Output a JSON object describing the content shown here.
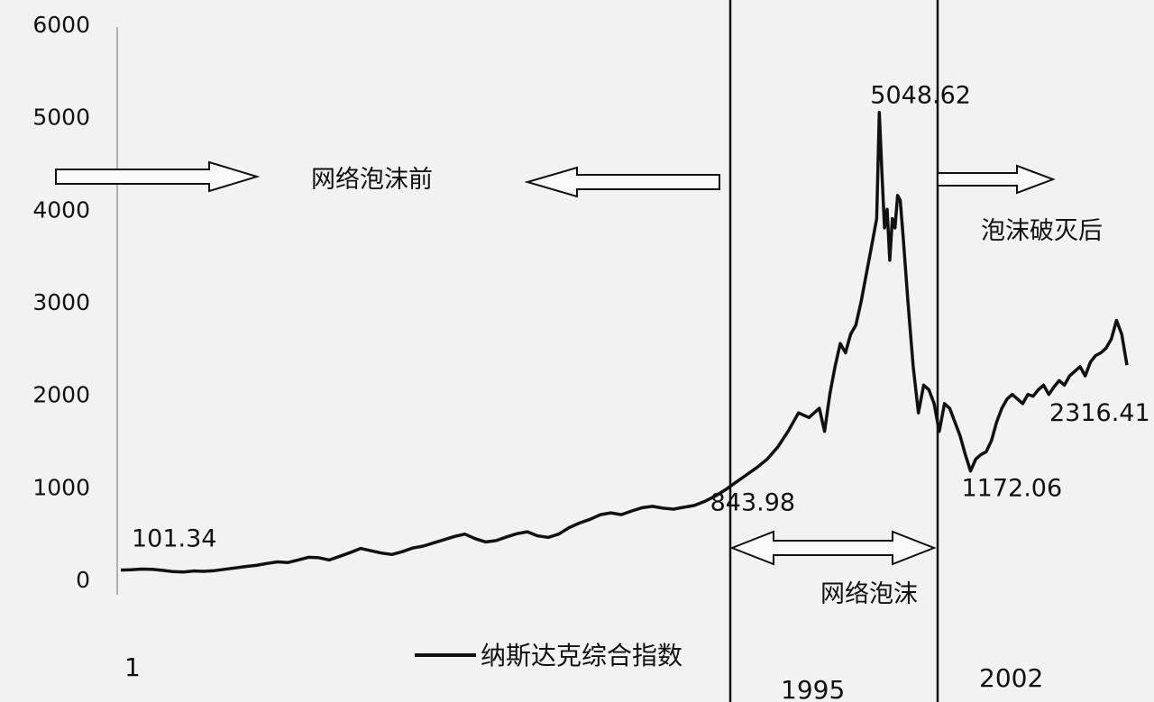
{
  "chart_data": {
    "type": "line",
    "title": "",
    "xlabel": "",
    "ylabel": "",
    "ylim": [
      0,
      6000
    ],
    "yticks": [
      0,
      1000,
      2000,
      3000,
      4000,
      5000,
      6000
    ],
    "grid": false,
    "legend": {
      "position": "bottom",
      "entries": [
        "纳斯达克综合指数"
      ]
    },
    "x_tick_labels": [
      "1",
      "1995",
      "2002"
    ],
    "series": [
      {
        "name": "纳斯达克综合指数",
        "color": "#111111",
        "points": [
          [
            0,
            101.34
          ],
          [
            2,
            105
          ],
          [
            4,
            112
          ],
          [
            6,
            110
          ],
          [
            8,
            98
          ],
          [
            10,
            85
          ],
          [
            12,
            80
          ],
          [
            14,
            92
          ],
          [
            16,
            88
          ],
          [
            18,
            95
          ],
          [
            20,
            110
          ],
          [
            22,
            125
          ],
          [
            24,
            140
          ],
          [
            26,
            152
          ],
          [
            28,
            172
          ],
          [
            30,
            190
          ],
          [
            32,
            182
          ],
          [
            34,
            210
          ],
          [
            36,
            240
          ],
          [
            38,
            235
          ],
          [
            40,
            210
          ],
          [
            42,
            250
          ],
          [
            44,
            290
          ],
          [
            46,
            335
          ],
          [
            48,
            310
          ],
          [
            50,
            285
          ],
          [
            52,
            270
          ],
          [
            54,
            300
          ],
          [
            56,
            340
          ],
          [
            58,
            360
          ],
          [
            60,
            395
          ],
          [
            62,
            430
          ],
          [
            64,
            465
          ],
          [
            66,
            490
          ],
          [
            68,
            440
          ],
          [
            70,
            405
          ],
          [
            72,
            420
          ],
          [
            74,
            460
          ],
          [
            76,
            495
          ],
          [
            78,
            515
          ],
          [
            80,
            470
          ],
          [
            82,
            455
          ],
          [
            84,
            490
          ],
          [
            86,
            560
          ],
          [
            88,
            610
          ],
          [
            90,
            650
          ],
          [
            92,
            700
          ],
          [
            94,
            720
          ],
          [
            96,
            700
          ],
          [
            98,
            740
          ],
          [
            100,
            775
          ],
          [
            102,
            790
          ],
          [
            104,
            770
          ],
          [
            106,
            760
          ],
          [
            108,
            780
          ],
          [
            110,
            800
          ],
          [
            112,
            843.98
          ],
          [
            114,
            900
          ],
          [
            116,
            970
          ],
          [
            118,
            1050
          ],
          [
            120,
            1130
          ],
          [
            122,
            1210
          ],
          [
            124,
            1300
          ],
          [
            126,
            1430
          ],
          [
            128,
            1600
          ],
          [
            130,
            1800
          ],
          [
            132,
            1750
          ],
          [
            134,
            1850
          ],
          [
            135,
            1600
          ],
          [
            136,
            2000
          ],
          [
            137,
            2300
          ],
          [
            138,
            2550
          ],
          [
            139,
            2450
          ],
          [
            140,
            2650
          ],
          [
            141,
            2750
          ],
          [
            142,
            3000
          ],
          [
            143,
            3300
          ],
          [
            144,
            3600
          ],
          [
            145,
            3900
          ],
          [
            145.5,
            5048.62
          ],
          [
            146,
            4400
          ],
          [
            146.5,
            3800
          ],
          [
            147,
            4000
          ],
          [
            147.5,
            3450
          ],
          [
            148,
            3900
          ],
          [
            148.5,
            3800
          ],
          [
            149,
            4150
          ],
          [
            149.5,
            4100
          ],
          [
            150,
            3750
          ],
          [
            151,
            3000
          ],
          [
            152,
            2300
          ],
          [
            153,
            1800
          ],
          [
            154,
            2100
          ],
          [
            155,
            2050
          ],
          [
            156,
            1900
          ],
          [
            157,
            1600
          ],
          [
            158,
            1900
          ],
          [
            159,
            1850
          ],
          [
            160,
            1700
          ],
          [
            161,
            1550
          ],
          [
            162,
            1350
          ],
          [
            163,
            1172.06
          ],
          [
            164,
            1300
          ],
          [
            165,
            1350
          ],
          [
            166,
            1380
          ],
          [
            167,
            1500
          ],
          [
            168,
            1700
          ],
          [
            169,
            1850
          ],
          [
            170,
            1950
          ],
          [
            171,
            2000
          ],
          [
            172,
            1950
          ],
          [
            173,
            1900
          ],
          [
            174,
            2000
          ],
          [
            175,
            1980
          ],
          [
            176,
            2050
          ],
          [
            177,
            2100
          ],
          [
            178,
            2000
          ],
          [
            179,
            2080
          ],
          [
            180,
            2150
          ],
          [
            181,
            2100
          ],
          [
            182,
            2200
          ],
          [
            183,
            2250
          ],
          [
            184,
            2300
          ],
          [
            185,
            2200
          ],
          [
            186,
            2350
          ],
          [
            187,
            2420
          ],
          [
            188,
            2450
          ],
          [
            189,
            2500
          ],
          [
            190,
            2600
          ],
          [
            191,
            2800
          ],
          [
            192,
            2650
          ],
          [
            193,
            2316.41
          ]
        ]
      }
    ],
    "data_labels": [
      {
        "text": "101.34",
        "x": 0,
        "y": 101.34
      },
      {
        "text": "843.98",
        "x": 112,
        "y": 843.98
      },
      {
        "text": "5048.62",
        "x": 145.5,
        "y": 5048.62
      },
      {
        "text": "1172.06",
        "x": 163,
        "y": 1172.06
      },
      {
        "text": "2316.41",
        "x": 193,
        "y": 2316.41
      }
    ],
    "annotations": {
      "before": "网络泡沫前",
      "bubble": "网络泡沫",
      "after": "泡沫破灭后"
    }
  }
}
